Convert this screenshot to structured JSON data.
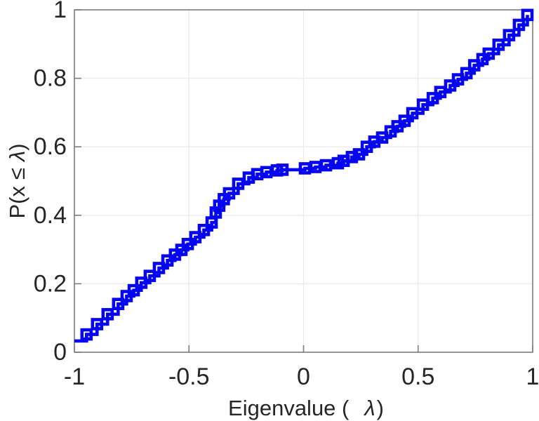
{
  "chart_data": {
    "type": "line",
    "subtype": "stairs-cdf",
    "title": "",
    "xlabel": "Eigenvalue ( λ)",
    "ylabel": "P(x ≤ λ)",
    "xlabel_parts": {
      "pre": "Eigenvalue (",
      "lambda": "λ",
      "post": ")"
    },
    "ylabel_parts": {
      "pre": "P(x",
      "leq": "≤",
      "lambda": "λ",
      "post": ")"
    },
    "xlim": [
      -1,
      1
    ],
    "ylim": [
      0,
      1
    ],
    "xticks": [
      -1,
      -0.5,
      0,
      0.5,
      1
    ],
    "xtick_labels": [
      "-1",
      "-0.5",
      "0",
      "0.5",
      "1"
    ],
    "yticks": [
      0,
      0.2,
      0.4,
      0.6,
      0.8,
      1
    ],
    "ytick_labels": [
      "0",
      "0.2",
      "0.4",
      "0.6",
      "0.8",
      "1"
    ],
    "grid": true,
    "legend": null,
    "line_color": "#0505f0",
    "axis_color": "#7e7e7e",
    "grid_color": "#ebebeb",
    "text_color": "#262626",
    "marker": "square-hollow",
    "points": [
      [
        -1.02,
        0.033
      ],
      [
        -0.947,
        0.052
      ],
      [
        -0.901,
        0.082
      ],
      [
        -0.855,
        0.111
      ],
      [
        -0.809,
        0.141
      ],
      [
        -0.772,
        0.164
      ],
      [
        -0.741,
        0.181
      ],
      [
        -0.708,
        0.203
      ],
      [
        -0.671,
        0.223
      ],
      [
        -0.631,
        0.246
      ],
      [
        -0.594,
        0.268
      ],
      [
        -0.561,
        0.285
      ],
      [
        -0.533,
        0.299
      ],
      [
        -0.505,
        0.316
      ],
      [
        -0.472,
        0.336
      ],
      [
        -0.435,
        0.357
      ],
      [
        -0.401,
        0.379
      ],
      [
        -0.383,
        0.408
      ],
      [
        -0.368,
        0.428
      ],
      [
        -0.348,
        0.447
      ],
      [
        -0.325,
        0.464
      ],
      [
        -0.285,
        0.492
      ],
      [
        -0.239,
        0.51
      ],
      [
        -0.202,
        0.52
      ],
      [
        -0.162,
        0.526
      ],
      [
        -0.116,
        0.531
      ],
      [
        -0.092,
        0.533
      ],
      [
        0.006,
        0.537
      ],
      [
        0.052,
        0.541
      ],
      [
        0.098,
        0.546
      ],
      [
        0.15,
        0.552
      ],
      [
        0.175,
        0.559
      ],
      [
        0.211,
        0.57
      ],
      [
        0.242,
        0.578
      ],
      [
        0.276,
        0.6
      ],
      [
        0.309,
        0.615
      ],
      [
        0.343,
        0.627
      ],
      [
        0.38,
        0.645
      ],
      [
        0.41,
        0.66
      ],
      [
        0.441,
        0.676
      ],
      [
        0.475,
        0.698
      ],
      [
        0.521,
        0.723
      ],
      [
        0.564,
        0.742
      ],
      [
        0.597,
        0.76
      ],
      [
        0.64,
        0.779
      ],
      [
        0.674,
        0.797
      ],
      [
        0.711,
        0.815
      ],
      [
        0.745,
        0.838
      ],
      [
        0.781,
        0.856
      ],
      [
        0.808,
        0.872
      ],
      [
        0.851,
        0.898
      ],
      [
        0.897,
        0.926
      ],
      [
        0.94,
        0.956
      ],
      [
        0.977,
        0.985
      ]
    ]
  }
}
